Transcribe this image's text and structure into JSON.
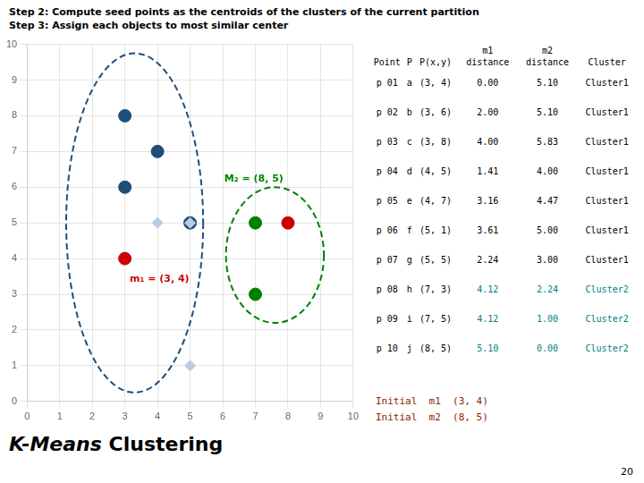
{
  "chart_data": {
    "type": "scatter",
    "title": "Step 2: Compute seed points as the centroids of the clusters of the current partition",
    "subtitle": "Step 3: Assign each objects to most similar center",
    "xlim": [
      0,
      10
    ],
    "ylim": [
      0,
      10
    ],
    "xticks": [
      0,
      1,
      2,
      3,
      4,
      5,
      6,
      7,
      8,
      9,
      10
    ],
    "yticks": [
      0,
      1,
      2,
      3,
      4,
      5,
      6,
      7,
      8,
      9,
      10
    ],
    "grid": true,
    "series": [
      {
        "color": "#1F4E79",
        "marker": "circle",
        "values": [
          [
            3,
            8
          ],
          [
            3,
            6
          ],
          [
            4,
            7
          ],
          [
            5,
            5
          ]
        ]
      },
      {
        "color": "#B8CCE4",
        "marker": "diamond",
        "values": [
          [
            4,
            5
          ],
          [
            5,
            5
          ],
          [
            5,
            1
          ]
        ]
      },
      {
        "color": "#B8CCE4",
        "marker": "diamond",
        "values": [
          [
            7,
            5
          ],
          [
            7,
            3
          ]
        ]
      },
      {
        "color": "#008000",
        "marker": "circle",
        "values": [
          [
            7,
            5
          ],
          [
            7,
            3
          ]
        ]
      },
      {
        "color": "#CC0000",
        "marker": "circle",
        "values": [
          [
            3,
            4
          ],
          [
            8,
            5
          ]
        ]
      }
    ],
    "ellipses": [
      {
        "center": [
          3.3,
          5.0
        ],
        "width": 4.2,
        "height": 9.5,
        "color": "#1F4E79",
        "line_style": "dashed"
      },
      {
        "center": [
          7.6,
          4.1
        ],
        "width": 3.0,
        "height": 3.8,
        "color": "#008000",
        "line_style": "dashed"
      }
    ],
    "annotations": [
      {
        "text": "m₁ = (3, 4)",
        "x": 3.15,
        "y": 3.35,
        "color": "#CC0000"
      },
      {
        "text": "M₂ = (8, 5)",
        "x": 6.05,
        "y": 6.15,
        "color": "#008000"
      }
    ],
    "table": {
      "header": [
        [
          "Point"
        ],
        [
          "P"
        ],
        [
          "P(x,y)"
        ],
        [
          "m1",
          "distance"
        ],
        [
          "m2",
          "distance"
        ],
        [
          "Cluster"
        ]
      ],
      "rows": [
        [
          "p 01",
          "a",
          "(3, 4)",
          "0.00",
          "5.10",
          "Cluster1"
        ],
        [
          "p 02",
          "b",
          "(3, 6)",
          "2.00",
          "5.10",
          "Cluster1"
        ],
        [
          "p 03",
          "c",
          "(3, 8)",
          "4.00",
          "5.83",
          "Cluster1"
        ],
        [
          "p 04",
          "d",
          "(4, 5)",
          "1.41",
          "4.00",
          "Cluster1"
        ],
        [
          "p 05",
          "e",
          "(4, 7)",
          "3.16",
          "4.47",
          "Cluster1"
        ],
        [
          "p 06",
          "f",
          "(5, 1)",
          "3.61",
          "5.00",
          "Cluster1"
        ],
        [
          "p 07",
          "g",
          "(5, 5)",
          "2.24",
          "3.00",
          "Cluster1"
        ],
        [
          "p 08",
          "h",
          "(7, 3)",
          "4.12",
          "2.24",
          "Cluster2"
        ],
        [
          "p 09",
          "i",
          "(7, 5)",
          "4.12",
          "1.00",
          "Cluster2"
        ],
        [
          "p 10",
          "j",
          "(8, 5)",
          "5.10",
          "0.00",
          "Cluster2"
        ]
      ],
      "row_colors": [
        "#000000",
        "#000000",
        "#000000",
        "#000000",
        "#000000",
        "#000000",
        "#000000",
        "#008080",
        "#008080",
        "#008080"
      ]
    },
    "footer": [
      {
        "text": "Initial  m1  (3, 4)",
        "color": "#8B2500"
      },
      {
        "text": "Initial  m2  (8, 5)",
        "color": "#8B2500"
      }
    ],
    "caption": [
      "K-Means",
      "Clustering"
    ],
    "page_number": "20"
  }
}
